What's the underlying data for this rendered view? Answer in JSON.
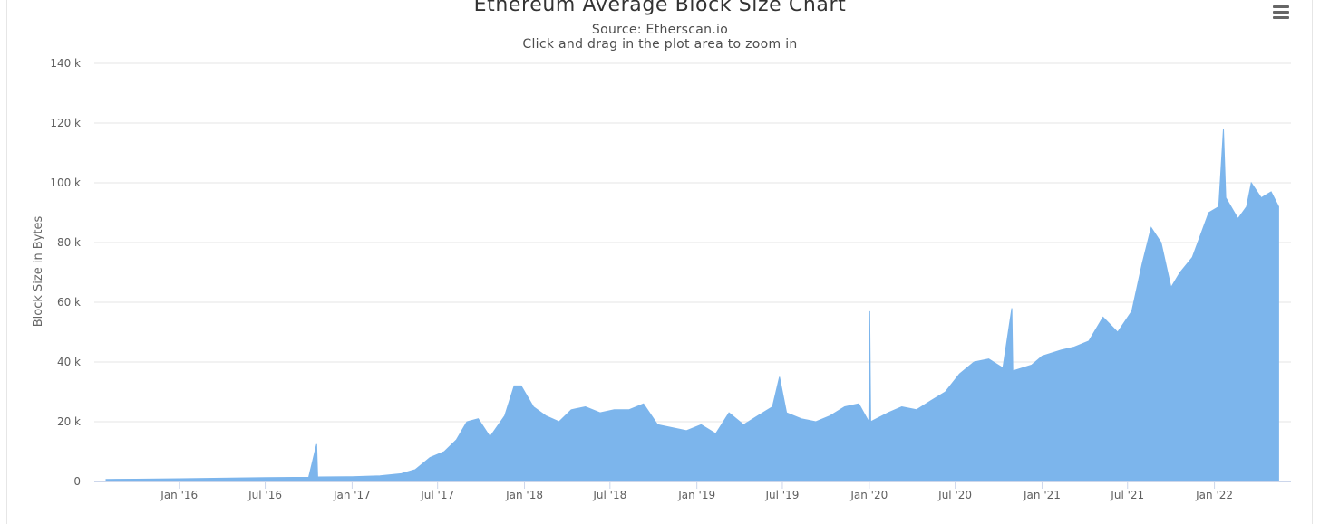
{
  "title": "Ethereum Average Block Size Chart",
  "subtitle_lines": [
    "Source: Etherscan.io",
    "Click and drag in the plot area to zoom in"
  ],
  "menu": {
    "icon": "hamburger-menu-icon"
  },
  "colors": {
    "area": "#7cb5ec",
    "grid": "#e6e6e6",
    "axis_text": "#606060"
  },
  "chart_data": {
    "type": "area",
    "title": "Ethereum Average Block Size Chart",
    "subtitle": "Source: Etherscan.io",
    "xlabel": "",
    "ylabel": "Block Size in Bytes",
    "ylim": [
      0,
      140000
    ],
    "xlim": [
      "2015-07-30",
      "2022-05-20"
    ],
    "y_tick_labels": [
      "0",
      "20 k",
      "40 k",
      "60 k",
      "80 k",
      "100 k",
      "120 k",
      "140 k"
    ],
    "y_ticks": [
      0,
      20000,
      40000,
      60000,
      80000,
      100000,
      120000,
      140000
    ],
    "x_ticks": [
      {
        "date": "2016-01-01",
        "label": "Jan '16"
      },
      {
        "date": "2016-07-01",
        "label": "Jul '16"
      },
      {
        "date": "2017-01-01",
        "label": "Jan '17"
      },
      {
        "date": "2017-07-01",
        "label": "Jul '17"
      },
      {
        "date": "2018-01-01",
        "label": "Jan '18"
      },
      {
        "date": "2018-07-01",
        "label": "Jul '18"
      },
      {
        "date": "2019-01-01",
        "label": "Jan '19"
      },
      {
        "date": "2019-07-01",
        "label": "Jul '19"
      },
      {
        "date": "2020-01-01",
        "label": "Jan '20"
      },
      {
        "date": "2020-07-01",
        "label": "Jul '20"
      },
      {
        "date": "2021-01-01",
        "label": "Jan '21"
      },
      {
        "date": "2021-07-01",
        "label": "Jul '21"
      },
      {
        "date": "2022-01-01",
        "label": "Jan '22"
      }
    ],
    "grid": true,
    "legend": "none",
    "series": [
      {
        "points": [
          [
            "2015-07-30",
            700
          ],
          [
            "2015-10-01",
            750
          ],
          [
            "2016-01-01",
            900
          ],
          [
            "2016-04-01",
            1100
          ],
          [
            "2016-07-01",
            1300
          ],
          [
            "2016-10-01",
            1400
          ],
          [
            "2016-10-18",
            12500
          ],
          [
            "2016-10-20",
            1500
          ],
          [
            "2017-01-01",
            1600
          ],
          [
            "2017-03-01",
            1900
          ],
          [
            "2017-04-15",
            2600
          ],
          [
            "2017-05-15",
            4000
          ],
          [
            "2017-06-15",
            8000
          ],
          [
            "2017-07-15",
            10000
          ],
          [
            "2017-08-10",
            14000
          ],
          [
            "2017-09-01",
            20000
          ],
          [
            "2017-09-25",
            21000
          ],
          [
            "2017-10-20",
            15000
          ],
          [
            "2017-11-20",
            22000
          ],
          [
            "2017-12-10",
            32000
          ],
          [
            "2017-12-25",
            32000
          ],
          [
            "2018-01-20",
            25000
          ],
          [
            "2018-02-15",
            22000
          ],
          [
            "2018-03-15",
            20000
          ],
          [
            "2018-04-10",
            24000
          ],
          [
            "2018-05-10",
            25000
          ],
          [
            "2018-06-10",
            23000
          ],
          [
            "2018-07-10",
            24000
          ],
          [
            "2018-08-10",
            24000
          ],
          [
            "2018-09-10",
            26000
          ],
          [
            "2018-10-10",
            19000
          ],
          [
            "2018-11-10",
            18000
          ],
          [
            "2018-12-10",
            17000
          ],
          [
            "2019-01-10",
            19000
          ],
          [
            "2019-02-10",
            16000
          ],
          [
            "2019-03-10",
            23000
          ],
          [
            "2019-04-10",
            19000
          ],
          [
            "2019-05-10",
            22000
          ],
          [
            "2019-06-10",
            25000
          ],
          [
            "2019-06-25",
            35000
          ],
          [
            "2019-07-10",
            23000
          ],
          [
            "2019-08-10",
            21000
          ],
          [
            "2019-09-10",
            20000
          ],
          [
            "2019-10-10",
            22000
          ],
          [
            "2019-11-10",
            25000
          ],
          [
            "2019-12-10",
            26000
          ],
          [
            "2019-12-31",
            20000
          ],
          [
            "2020-01-02",
            57000
          ],
          [
            "2020-01-04",
            20000
          ],
          [
            "2020-02-10",
            23000
          ],
          [
            "2020-03-10",
            25000
          ],
          [
            "2020-04-10",
            24000
          ],
          [
            "2020-05-10",
            27000
          ],
          [
            "2020-06-10",
            30000
          ],
          [
            "2020-07-10",
            36000
          ],
          [
            "2020-08-10",
            40000
          ],
          [
            "2020-09-10",
            41000
          ],
          [
            "2020-10-10",
            38000
          ],
          [
            "2020-10-29",
            58000
          ],
          [
            "2020-10-31",
            37000
          ],
          [
            "2020-12-10",
            39000
          ],
          [
            "2021-01-01",
            42000
          ],
          [
            "2021-02-10",
            44000
          ],
          [
            "2021-03-10",
            45000
          ],
          [
            "2021-04-10",
            47000
          ],
          [
            "2021-05-10",
            55000
          ],
          [
            "2021-06-10",
            50000
          ],
          [
            "2021-07-10",
            57000
          ],
          [
            "2021-08-01",
            73000
          ],
          [
            "2021-08-20",
            85000
          ],
          [
            "2021-09-10",
            80000
          ],
          [
            "2021-10-01",
            65000
          ],
          [
            "2021-10-20",
            70000
          ],
          [
            "2021-11-15",
            75000
          ],
          [
            "2021-12-20",
            90000
          ],
          [
            "2022-01-10",
            92000
          ],
          [
            "2022-01-20",
            118000
          ],
          [
            "2022-01-25",
            95000
          ],
          [
            "2022-02-20",
            88000
          ],
          [
            "2022-03-10",
            92000
          ],
          [
            "2022-03-20",
            100000
          ],
          [
            "2022-04-10",
            95000
          ],
          [
            "2022-05-01",
            97000
          ],
          [
            "2022-05-17",
            92000
          ]
        ]
      }
    ]
  }
}
